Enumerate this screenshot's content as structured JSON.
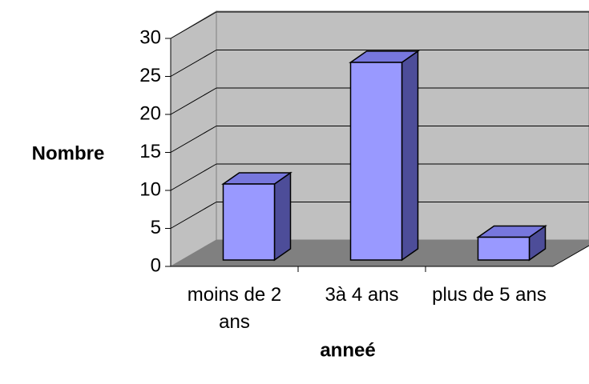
{
  "chart_data": {
    "type": "bar3d",
    "categories": [
      "moins de 2 ans",
      "3à 4 ans",
      "plus de 5 ans"
    ],
    "values": [
      10,
      26,
      3
    ],
    "color": "#9999ff",
    "ylim": [
      0,
      30
    ],
    "yticks": [
      0,
      5,
      10,
      15,
      20,
      25,
      30
    ],
    "ylabel": "Nombre",
    "xlabel": "anneé",
    "grid": true
  }
}
